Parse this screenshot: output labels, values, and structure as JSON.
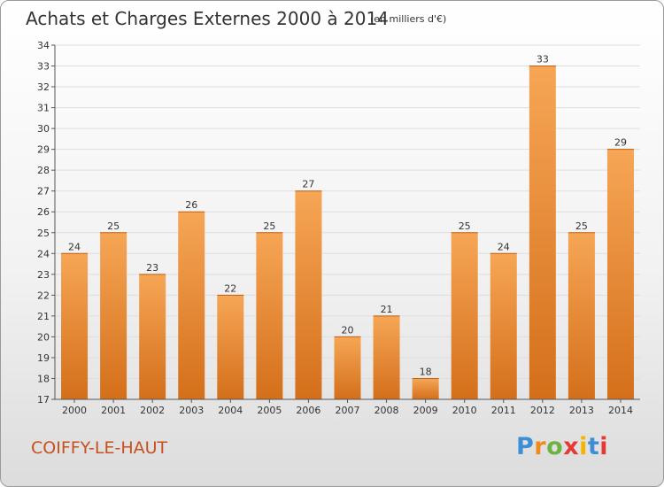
{
  "header": {
    "title": "Achats et Charges Externes 2000 à 2014",
    "subtitle": "(en milliers d'€)"
  },
  "footer": {
    "commune": "COIFFY-LE-HAUT",
    "logo_letters": [
      "P",
      "r",
      "o",
      "x",
      "i",
      "t",
      "i"
    ],
    "logo_colors": [
      "#3c8fd6",
      "#f08a1c",
      "#6db33f",
      "#e53935",
      "#f5b400",
      "#3c8fd6",
      "#e53935"
    ]
  },
  "colors": {
    "bar_light": "#f6a656",
    "bar_dark": "#d46f1a",
    "grid": "#dedede",
    "axis": "#555555"
  },
  "chart_data": {
    "type": "bar",
    "categories": [
      "2000",
      "2001",
      "2002",
      "2003",
      "2004",
      "2005",
      "2006",
      "2007",
      "2008",
      "2009",
      "2010",
      "2011",
      "2012",
      "2013",
      "2014"
    ],
    "values": [
      24,
      25,
      23,
      26,
      22,
      25,
      27,
      20,
      21,
      18,
      25,
      24,
      33,
      25,
      29
    ],
    "y_ticks": [
      "17",
      "18",
      "19",
      "20",
      "21",
      "22",
      "23",
      "24",
      "25",
      "26",
      "27",
      "28",
      "29",
      "30",
      "31",
      "32",
      "33",
      "34"
    ],
    "ylim": [
      17,
      34
    ],
    "grid": true
  }
}
